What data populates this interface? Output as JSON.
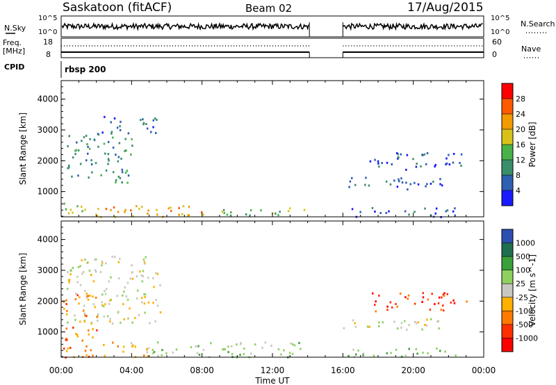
{
  "header": {
    "station": "Saskatoon (fitACF)",
    "beam": "Beam 02",
    "date": "17/Aug/2015"
  },
  "strips": {
    "nsky_label": "N.Sky",
    "nsky_ticks": [
      "10^5",
      "10^0"
    ],
    "nsearch_label": "N.Search",
    "nsearch_ticks": [
      "10^5",
      "10^0"
    ],
    "freq_label": "Freq.",
    "freq_unit": "[MHz]",
    "freq_ticks": [
      18,
      8
    ],
    "nave_label": "Nave",
    "nave_ticks": [
      60,
      0
    ],
    "cpid_label": "CPID",
    "cpid_value": "rbsp 200"
  },
  "chart_data": [
    {
      "type": "heatmap",
      "name": "power",
      "xlabel": "Time UT",
      "ylabel": "Slant Range [km]",
      "x_ticks": [
        "00:00",
        "04:00",
        "08:00",
        "12:00",
        "16:00",
        "20:00",
        "00:00"
      ],
      "xlim_hours": [
        0,
        24
      ],
      "ylim": [
        180,
        4600
      ],
      "y_ticks": [
        1000,
        2000,
        3000,
        4000
      ],
      "data_gap_hours": [
        14.1,
        16.0
      ],
      "colorbar": {
        "label": "Power [dB]",
        "ticks": [
          4,
          8,
          12,
          16,
          20,
          24,
          28
        ],
        "colors": [
          "#1a1aff",
          "#2e5fb0",
          "#3a8f6a",
          "#48b248",
          "#d8c21a",
          "#f29a00",
          "#ff5a00",
          "#ff0000"
        ]
      },
      "regions": [
        {
          "t0": 0.3,
          "t1": 4.0,
          "r0": 1300,
          "r1": 2900,
          "level": 2
        },
        {
          "t0": 2.0,
          "t1": 5.6,
          "r0": 2900,
          "r1": 3500,
          "level": 1
        },
        {
          "t0": 0.0,
          "t1": 2.2,
          "r0": 200,
          "r1": 700,
          "level": 4
        },
        {
          "t0": 2.2,
          "t1": 9.0,
          "r0": 200,
          "r1": 600,
          "level": 5
        },
        {
          "t0": 9.0,
          "t1": 14.1,
          "r0": 200,
          "r1": 500,
          "level": 3
        },
        {
          "t0": 16.0,
          "t1": 22.5,
          "r0": 200,
          "r1": 500,
          "level": 1
        },
        {
          "t0": 16.0,
          "t1": 22.0,
          "r0": 1100,
          "r1": 1500,
          "level": 1
        },
        {
          "t0": 17.5,
          "t1": 23.0,
          "r0": 1700,
          "r1": 2300,
          "level": 1
        }
      ]
    },
    {
      "type": "heatmap",
      "name": "velocity",
      "xlabel": "Time UT",
      "ylabel": "Slant Range [km]",
      "x_ticks": [
        "00:00",
        "04:00",
        "08:00",
        "12:00",
        "16:00",
        "20:00",
        "00:00"
      ],
      "xlim_hours": [
        0,
        24
      ],
      "ylim": [
        180,
        4600
      ],
      "y_ticks": [
        1000,
        2000,
        3000,
        4000
      ],
      "data_gap_hours": [
        14.1,
        16.0
      ],
      "colorbar": {
        "label": "Velocity [m s^-1]",
        "ticks": [
          1000,
          500,
          100,
          25,
          -25,
          -100,
          -500,
          -1000
        ],
        "colors": [
          "#2d4fb0",
          "#1f6e4e",
          "#3aa03a",
          "#8fd060",
          "#c8c8c0",
          "#ffb000",
          "#ff7a00",
          "#ff3000",
          "#ff0000"
        ]
      },
      "regions": [
        {
          "t0": 0.3,
          "t1": 5.6,
          "r0": 1300,
          "r1": 3500,
          "level": 4
        },
        {
          "t0": 0.0,
          "t1": 2.0,
          "r0": 200,
          "r1": 2300,
          "level": 6
        },
        {
          "t0": 2.0,
          "t1": 5.0,
          "r0": 200,
          "r1": 700,
          "level": 5
        },
        {
          "t0": 5.0,
          "t1": 14.1,
          "r0": 200,
          "r1": 700,
          "level": 3
        },
        {
          "t0": 16.0,
          "t1": 22.5,
          "r0": 200,
          "r1": 500,
          "level": 3
        },
        {
          "t0": 16.0,
          "t1": 22.0,
          "r0": 1100,
          "r1": 1500,
          "level": 4
        },
        {
          "t0": 17.5,
          "t1": 23.0,
          "r0": 1700,
          "r1": 2300,
          "level": 7
        }
      ]
    }
  ]
}
